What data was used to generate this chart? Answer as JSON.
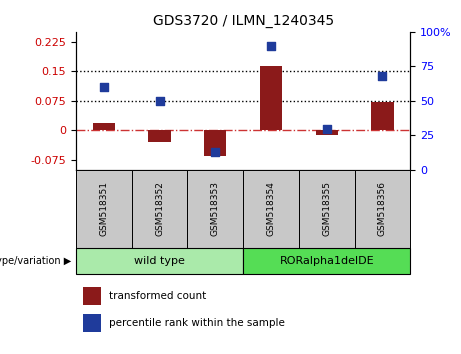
{
  "title": "GDS3720 / ILMN_1240345",
  "samples": [
    "GSM518351",
    "GSM518352",
    "GSM518353",
    "GSM518354",
    "GSM518355",
    "GSM518356"
  ],
  "bar_values": [
    0.018,
    -0.028,
    -0.065,
    0.163,
    -0.012,
    0.073
  ],
  "dot_percentiles": [
    60,
    50,
    13,
    90,
    30,
    68
  ],
  "left_ylim": [
    -0.1,
    0.25
  ],
  "left_yticks": [
    -0.075,
    0,
    0.075,
    0.15,
    0.225
  ],
  "right_ylim": [
    0,
    100
  ],
  "right_yticks": [
    0,
    25,
    50,
    75,
    100
  ],
  "right_yticklabels": [
    "0",
    "25",
    "50",
    "75",
    "100%"
  ],
  "hlines": [
    0.075,
    0.15
  ],
  "bar_color": "#8B1A1A",
  "dot_color": "#1F3B9B",
  "zero_line_color": "#CC3333",
  "hline_color": "black",
  "group1_label": "wild type",
  "group2_label": "RORalpha1delDE",
  "group1_color": "#AAEAAA",
  "group2_color": "#55DD55",
  "xlabel_genotype": "genotype/variation",
  "legend_bar_label": "transformed count",
  "legend_dot_label": "percentile rank within the sample",
  "bar_width": 0.4,
  "dot_size": 38,
  "tick_fontsize": 8,
  "sample_box_color": "#C8C8C8"
}
